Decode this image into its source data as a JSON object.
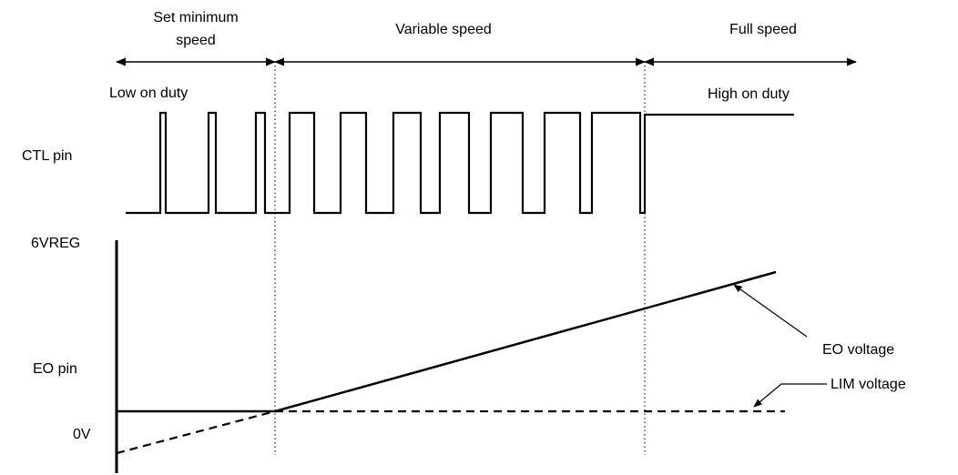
{
  "regions": {
    "set_min_line1": "Set minimum",
    "set_min_line2": "speed",
    "variable": "Variable speed",
    "full": "Full speed"
  },
  "duty": {
    "low": "Low on duty",
    "high": "High on duty"
  },
  "pins": {
    "ctl": "CTL pin",
    "eo": "EO pin"
  },
  "levels": {
    "top": "6VREG",
    "bottom": "0V"
  },
  "signals": {
    "eo_voltage": "EO voltage",
    "lim_voltage": "LIM voltage"
  }
}
